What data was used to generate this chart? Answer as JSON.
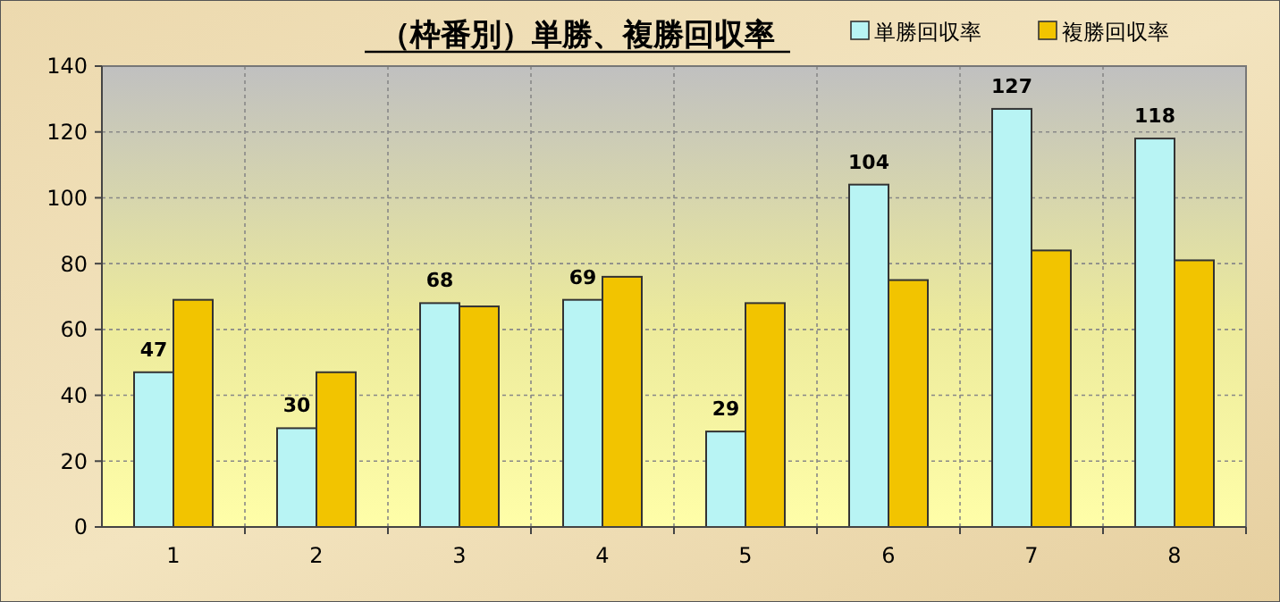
{
  "chart_data": {
    "type": "bar",
    "title": "（枠番別）単勝、複勝回収率",
    "categories": [
      "1",
      "2",
      "3",
      "4",
      "5",
      "6",
      "7",
      "8"
    ],
    "series": [
      {
        "name": "単勝回収率",
        "color": "#b8f4f4",
        "values": [
          47,
          30,
          68,
          69,
          29,
          104,
          127,
          118
        ],
        "value_labels": [
          "47",
          "30",
          "68",
          "69",
          "29",
          "104",
          "127",
          "118"
        ]
      },
      {
        "name": "複勝回収率",
        "color": "#f2c400",
        "values": [
          69,
          47,
          67,
          76,
          68,
          75,
          84,
          81
        ]
      }
    ],
    "ylim": [
      0,
      140
    ],
    "yticks": [
      0,
      20,
      40,
      60,
      80,
      100,
      120,
      140
    ],
    "grid": true,
    "legend": "top right"
  }
}
